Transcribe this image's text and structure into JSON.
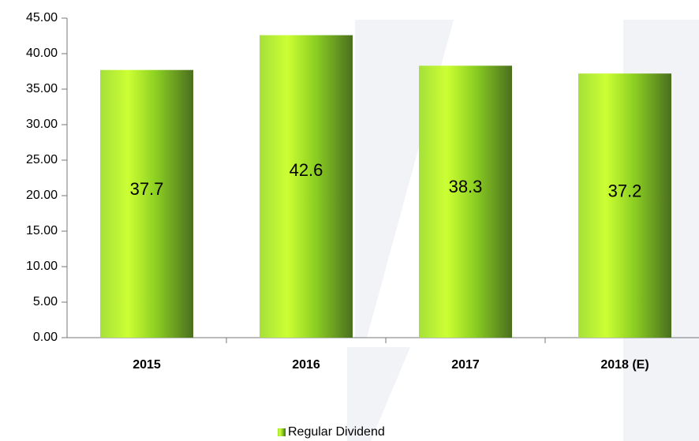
{
  "chart_data": {
    "type": "bar",
    "categories": [
      "2015",
      "2016",
      "2017",
      "2018 (E)"
    ],
    "series": [
      {
        "name": "Regular Dividend",
        "color": "#8ccf22",
        "values": [
          37.7,
          42.6,
          38.3,
          37.2
        ]
      }
    ],
    "ylim": [
      0,
      45
    ],
    "yticks": [
      {
        "value": 0,
        "label": "0.00"
      },
      {
        "value": 5,
        "label": "5.00"
      },
      {
        "value": 10,
        "label": "10.00"
      },
      {
        "value": 15,
        "label": "15.00"
      },
      {
        "value": 20,
        "label": "20.00"
      },
      {
        "value": 25,
        "label": "25.00"
      },
      {
        "value": 30,
        "label": "30.00"
      },
      {
        "value": 35,
        "label": "35.00"
      },
      {
        "value": 40,
        "label": "40.00"
      },
      {
        "value": 45,
        "label": "45.00"
      }
    ],
    "grid": false,
    "legend": "bottom"
  }
}
